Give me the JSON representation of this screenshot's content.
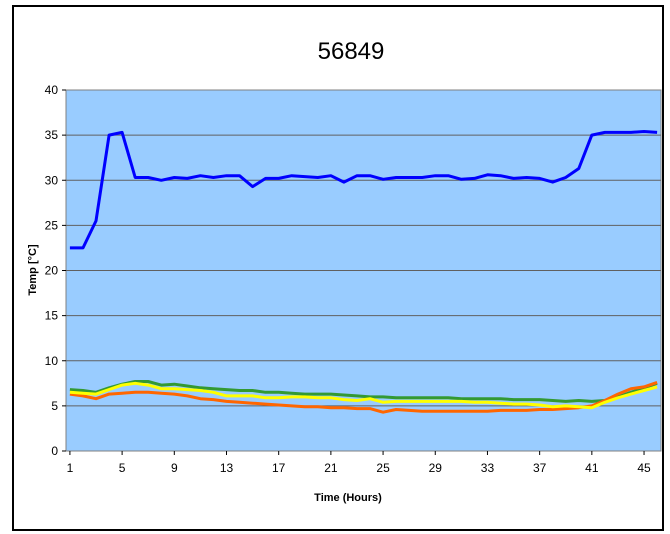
{
  "chart_data": {
    "type": "line",
    "title": "56849",
    "xlabel": "Time (Hours)",
    "ylabel": "Temp [°C]",
    "xlim": [
      1,
      46
    ],
    "ylim": [
      0,
      40
    ],
    "x_ticks": [
      1,
      5,
      9,
      13,
      17,
      21,
      25,
      29,
      33,
      37,
      41,
      45
    ],
    "y_ticks": [
      0,
      5,
      10,
      15,
      20,
      25,
      30,
      35,
      40
    ],
    "plot_background": "#99CCFF",
    "grid": true,
    "legend": "none",
    "x": [
      1,
      2,
      3,
      4,
      5,
      6,
      7,
      8,
      9,
      10,
      11,
      12,
      13,
      14,
      15,
      16,
      17,
      18,
      19,
      20,
      21,
      22,
      23,
      24,
      25,
      26,
      27,
      28,
      29,
      30,
      31,
      32,
      33,
      34,
      35,
      36,
      37,
      38,
      39,
      40,
      41,
      42,
      43,
      44,
      45,
      46
    ],
    "series": [
      {
        "color": "#0000FF",
        "values": [
          22.5,
          22.5,
          25.5,
          35.0,
          35.3,
          30.3,
          30.3,
          30.0,
          30.3,
          30.2,
          30.5,
          30.3,
          30.5,
          30.5,
          29.3,
          30.2,
          30.2,
          30.5,
          30.4,
          30.3,
          30.5,
          29.8,
          30.5,
          30.5,
          30.1,
          30.3,
          30.3,
          30.3,
          30.5,
          30.5,
          30.1,
          30.2,
          30.6,
          30.5,
          30.2,
          30.3,
          30.2,
          29.8,
          30.3,
          31.3,
          35.0,
          35.3,
          35.3,
          35.3,
          35.4,
          35.3
        ]
      },
      {
        "color": "#339933",
        "values": [
          6.8,
          6.7,
          6.5,
          7.0,
          7.4,
          7.7,
          7.7,
          7.3,
          7.4,
          7.2,
          7.0,
          6.9,
          6.8,
          6.7,
          6.7,
          6.5,
          6.5,
          6.4,
          6.3,
          6.3,
          6.3,
          6.2,
          6.1,
          6.0,
          6.0,
          5.9,
          5.9,
          5.9,
          5.9,
          5.9,
          5.8,
          5.8,
          5.8,
          5.8,
          5.7,
          5.7,
          5.7,
          5.6,
          5.5,
          5.6,
          5.5,
          5.6,
          6.0,
          6.5,
          7.0,
          7.5
        ]
      },
      {
        "color": "#FF6600",
        "values": [
          6.3,
          6.1,
          5.8,
          6.3,
          6.4,
          6.5,
          6.5,
          6.4,
          6.3,
          6.1,
          5.8,
          5.7,
          5.5,
          5.4,
          5.3,
          5.2,
          5.1,
          5.0,
          4.9,
          4.9,
          4.8,
          4.8,
          4.7,
          4.7,
          4.3,
          4.6,
          4.5,
          4.4,
          4.4,
          4.4,
          4.4,
          4.4,
          4.4,
          4.5,
          4.5,
          4.5,
          4.6,
          4.6,
          4.7,
          4.8,
          5.0,
          5.6,
          6.3,
          6.9,
          7.1,
          7.6
        ]
      },
      {
        "color": "#FFFF00",
        "values": [
          6.5,
          6.4,
          6.3,
          6.8,
          7.3,
          7.5,
          7.3,
          6.9,
          6.9,
          6.8,
          6.7,
          6.5,
          6.1,
          6.1,
          6.1,
          5.9,
          5.9,
          6.0,
          6.0,
          5.9,
          5.9,
          5.7,
          5.6,
          5.8,
          5.4,
          5.5,
          5.5,
          5.5,
          5.5,
          5.5,
          5.5,
          5.4,
          5.4,
          5.3,
          5.2,
          5.2,
          5.1,
          4.9,
          5.0,
          4.9,
          4.8,
          5.4,
          5.9,
          6.3,
          6.7,
          7.1
        ]
      }
    ]
  }
}
